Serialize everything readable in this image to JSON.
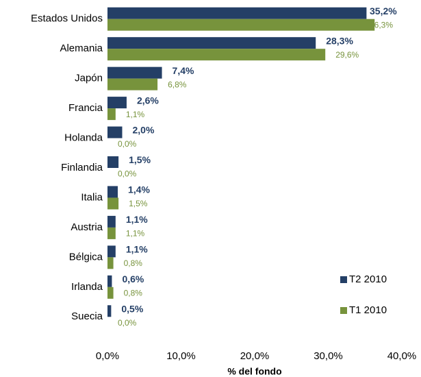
{
  "chart_data": {
    "type": "bar",
    "orientation": "horizontal",
    "categories": [
      "Estados Unidos",
      "Alemania",
      "Japón",
      "Francia",
      "Holanda",
      "Finlandia",
      "Italia",
      "Austria",
      "Bélgica",
      "Irlanda",
      "Suecia"
    ],
    "series": [
      {
        "name": "T2 2010",
        "color": "#243f66",
        "values": [
          35.2,
          28.3,
          7.4,
          2.6,
          2.0,
          1.5,
          1.4,
          1.1,
          1.1,
          0.6,
          0.5
        ],
        "value_labels": [
          "35,2%",
          "28,3%",
          "7,4%",
          "2,6%",
          "2,0%",
          "1,5%",
          "1,4%",
          "1,1%",
          "1,1%",
          "0,6%",
          "0,5%"
        ]
      },
      {
        "name": "T1 2010",
        "color": "#77933c",
        "values": [
          36.3,
          29.6,
          6.8,
          1.1,
          0.0,
          0.0,
          1.5,
          1.1,
          0.8,
          0.8,
          0.0
        ],
        "value_labels": [
          "36,3%",
          "29,6%",
          "6,8%",
          "1,1%",
          "0,0%",
          "0,0%",
          "1,5%",
          "1,1%",
          "0,8%",
          "0,8%",
          "0,0%"
        ]
      }
    ],
    "xlabel": "% del fondo",
    "xlim": [
      0,
      40
    ],
    "xticks": [
      {
        "value": 0,
        "label": "0,0%"
      },
      {
        "value": 10,
        "label": "10,0%"
      },
      {
        "value": 20,
        "label": "20,0%"
      },
      {
        "value": 30,
        "label": "30,0%"
      },
      {
        "value": 40,
        "label": "40,0%"
      }
    ],
    "legend": "lower right"
  }
}
